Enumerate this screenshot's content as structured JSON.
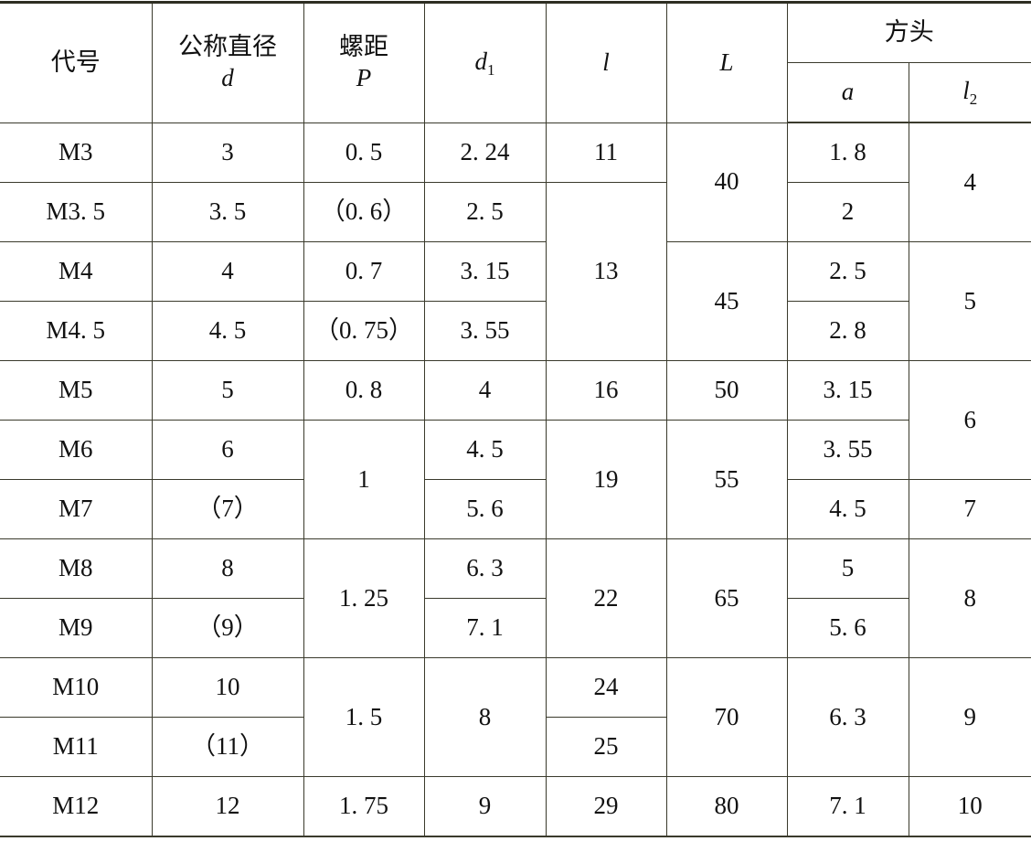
{
  "header": {
    "code": "代号",
    "nominal_diameter": {
      "label": "公称直径",
      "symbol": "d"
    },
    "pitch": {
      "label": "螺距",
      "symbol": "P"
    },
    "d1": {
      "symbol": "d",
      "sub": "1"
    },
    "l": {
      "symbol": "l"
    },
    "L": {
      "symbol": "L"
    },
    "square_head": {
      "label": "方头",
      "a": "a",
      "l2": {
        "symbol": "l",
        "sub": "2"
      }
    }
  },
  "rows": [
    [
      {
        "t": "M3"
      },
      {
        "t": "3"
      },
      {
        "t": "0. 5"
      },
      {
        "t": "2. 24"
      },
      {
        "t": "11"
      },
      {
        "t": "40",
        "rs": 2
      },
      {
        "t": "1. 8"
      },
      {
        "t": "4",
        "rs": 2
      }
    ],
    [
      {
        "t": "M3. 5"
      },
      {
        "t": "3. 5"
      },
      {
        "t": "（0. 6）"
      },
      {
        "t": "2. 5"
      },
      {
        "t": "13",
        "rs": 3
      },
      {
        "t": "2"
      }
    ],
    [
      {
        "t": "M4"
      },
      {
        "t": "4"
      },
      {
        "t": "0. 7"
      },
      {
        "t": "3. 15"
      },
      {
        "t": "45",
        "rs": 2
      },
      {
        "t": "2. 5"
      },
      {
        "t": "5",
        "rs": 2
      }
    ],
    [
      {
        "t": "M4. 5"
      },
      {
        "t": "4. 5"
      },
      {
        "t": "（0. 75）"
      },
      {
        "t": "3. 55"
      },
      {
        "t": "2. 8"
      }
    ],
    [
      {
        "t": "M5"
      },
      {
        "t": "5"
      },
      {
        "t": "0. 8"
      },
      {
        "t": "4"
      },
      {
        "t": "16"
      },
      {
        "t": "50"
      },
      {
        "t": "3. 15"
      },
      {
        "t": "6",
        "rs": 2
      }
    ],
    [
      {
        "t": "M6"
      },
      {
        "t": "6"
      },
      {
        "t": "1",
        "rs": 2
      },
      {
        "t": "4. 5"
      },
      {
        "t": "19",
        "rs": 2
      },
      {
        "t": "55",
        "rs": 2
      },
      {
        "t": "3. 55"
      }
    ],
    [
      {
        "t": "M7"
      },
      {
        "t": "（7）"
      },
      {
        "t": "5. 6"
      },
      {
        "t": "4. 5"
      },
      {
        "t": "7"
      }
    ],
    [
      {
        "t": "M8"
      },
      {
        "t": "8"
      },
      {
        "t": "1. 25",
        "rs": 2
      },
      {
        "t": "6. 3"
      },
      {
        "t": "22",
        "rs": 2
      },
      {
        "t": "65",
        "rs": 2
      },
      {
        "t": "5"
      },
      {
        "t": "8",
        "rs": 2
      }
    ],
    [
      {
        "t": "M9"
      },
      {
        "t": "（9）"
      },
      {
        "t": "7. 1"
      },
      {
        "t": "5. 6"
      }
    ],
    [
      {
        "t": "M10"
      },
      {
        "t": "10"
      },
      {
        "t": "1. 5",
        "rs": 2
      },
      {
        "t": "8",
        "rs": 2
      },
      {
        "t": "24"
      },
      {
        "t": "70",
        "rs": 2
      },
      {
        "t": "6. 3",
        "rs": 2
      },
      {
        "t": "9",
        "rs": 2
      }
    ],
    [
      {
        "t": "M11"
      },
      {
        "t": "（11）"
      },
      {
        "t": "25"
      }
    ],
    [
      {
        "t": "M12"
      },
      {
        "t": "12"
      },
      {
        "t": "1. 75"
      },
      {
        "t": "9"
      },
      {
        "t": "29"
      },
      {
        "t": "80"
      },
      {
        "t": "7. 1"
      },
      {
        "t": "10"
      }
    ]
  ]
}
